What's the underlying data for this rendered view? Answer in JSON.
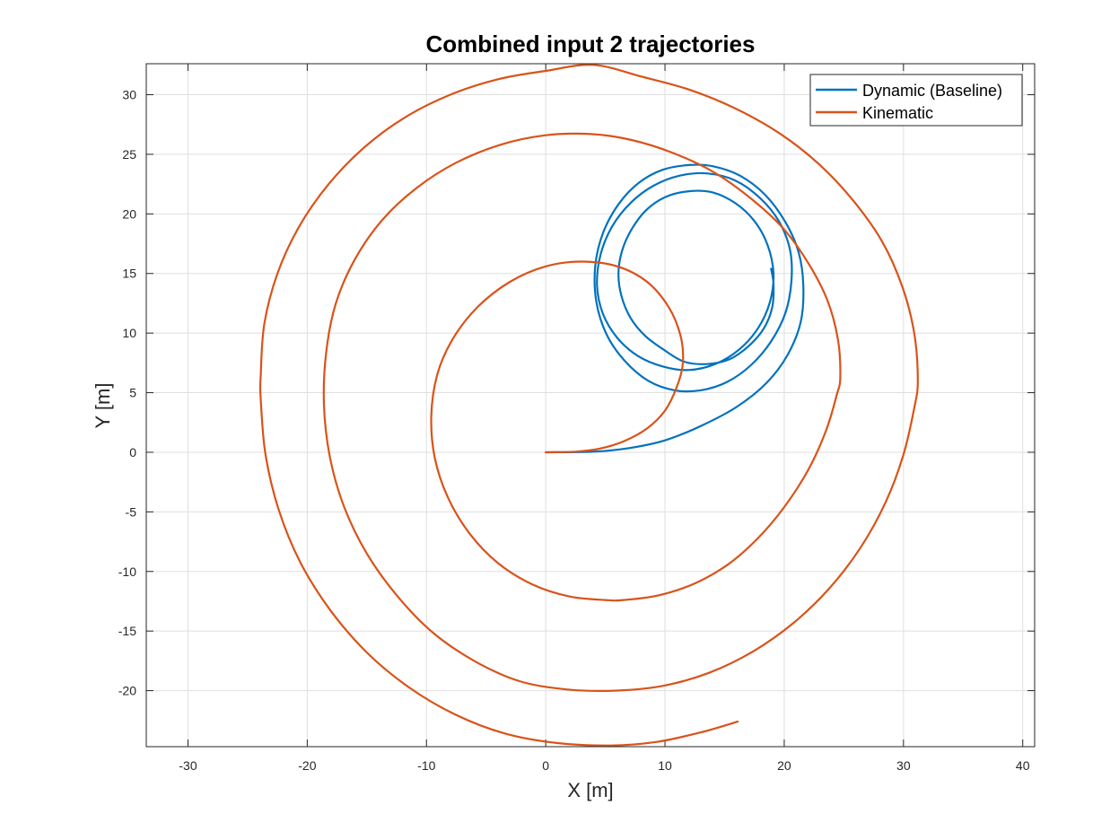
{
  "chart_data": {
    "type": "line",
    "title": "Combined input 2 trajectories",
    "xlabel": "X [m]",
    "ylabel": "Y [m]",
    "xlim": [
      -33.5,
      41
    ],
    "ylim": [
      -24.7,
      32.6
    ],
    "xticks": [
      -30,
      -20,
      -10,
      0,
      10,
      20,
      30,
      40
    ],
    "yticks": [
      -20,
      -15,
      -10,
      -5,
      0,
      5,
      10,
      15,
      20,
      25,
      30
    ],
    "grid": true,
    "legend_position": "top-right",
    "series": [
      {
        "name": "Dynamic (Baseline)",
        "color": "#0072BD",
        "points": [
          [
            0,
            0
          ],
          [
            4,
            0.05
          ],
          [
            7,
            0.35
          ],
          [
            10,
            1.0
          ],
          [
            13,
            2.2
          ],
          [
            16,
            3.8
          ],
          [
            18.5,
            5.8
          ],
          [
            20.3,
            8.2
          ],
          [
            21.4,
            11.0
          ],
          [
            21.6,
            14.0
          ],
          [
            21.2,
            16.8
          ],
          [
            20.1,
            19.3
          ],
          [
            18.4,
            21.6
          ],
          [
            16.3,
            23.2
          ],
          [
            14.0,
            24.0
          ],
          [
            12.0,
            24.1
          ],
          [
            9.8,
            23.7
          ],
          [
            7.8,
            22.6
          ],
          [
            6.1,
            20.8
          ],
          [
            4.8,
            18.4
          ],
          [
            4.15,
            15.6
          ],
          [
            4.25,
            12.6
          ],
          [
            5.1,
            9.9
          ],
          [
            6.6,
            7.7
          ],
          [
            8.6,
            6.0
          ],
          [
            10.8,
            5.2
          ],
          [
            13.0,
            5.2
          ],
          [
            15.2,
            5.9
          ],
          [
            17.2,
            7.3
          ],
          [
            18.9,
            9.3
          ],
          [
            20.1,
            11.7
          ],
          [
            20.6,
            14.3
          ],
          [
            20.5,
            16.9
          ],
          [
            19.6,
            19.3
          ],
          [
            18.0,
            21.3
          ],
          [
            15.9,
            22.8
          ],
          [
            13.5,
            23.4
          ],
          [
            11.2,
            23.2
          ],
          [
            9.1,
            22.4
          ],
          [
            7.2,
            21.0
          ],
          [
            5.6,
            19.0
          ],
          [
            4.6,
            16.6
          ],
          [
            4.3,
            14.0
          ],
          [
            4.8,
            11.6
          ],
          [
            6.0,
            9.6
          ],
          [
            7.7,
            8.1
          ],
          [
            9.8,
            7.2
          ],
          [
            12.0,
            6.9
          ],
          [
            14.2,
            7.4
          ],
          [
            16.2,
            8.6
          ],
          [
            17.8,
            10.4
          ],
          [
            18.8,
            12.6
          ],
          [
            19.1,
            15.0
          ],
          [
            18.6,
            17.4
          ],
          [
            17.5,
            19.4
          ],
          [
            15.9,
            20.9
          ],
          [
            14.0,
            21.8
          ],
          [
            12.0,
            21.9
          ],
          [
            10.0,
            21.4
          ],
          [
            8.4,
            20.3
          ],
          [
            7.2,
            18.7
          ],
          [
            6.4,
            16.9
          ],
          [
            6.1,
            15.0
          ],
          [
            6.35,
            13.1
          ],
          [
            7.1,
            11.3
          ],
          [
            8.3,
            9.8
          ],
          [
            9.9,
            8.6
          ],
          [
            11.6,
            7.6
          ],
          [
            13.5,
            7.4
          ],
          [
            15.4,
            7.8
          ],
          [
            17.0,
            8.9
          ],
          [
            18.3,
            10.4
          ],
          [
            19.0,
            12.2
          ],
          [
            19.1,
            14.1
          ],
          [
            18.9,
            15.4
          ]
        ]
      },
      {
        "name": "Kinematic",
        "color": "#D95319",
        "points": [
          [
            0,
            0
          ],
          [
            2.5,
            0.05
          ],
          [
            4.5,
            0.3
          ],
          [
            6.5,
            0.9
          ],
          [
            8.5,
            2.0
          ],
          [
            10.0,
            3.5
          ],
          [
            11.0,
            5.5
          ],
          [
            11.5,
            7.5
          ],
          [
            11.3,
            9.8
          ],
          [
            10.3,
            12.2
          ],
          [
            8.5,
            14.3
          ],
          [
            6.0,
            15.6
          ],
          [
            3.0,
            16.0
          ],
          [
            0.0,
            15.6
          ],
          [
            -3.0,
            14.3
          ],
          [
            -5.7,
            12.2
          ],
          [
            -7.8,
            9.5
          ],
          [
            -9.1,
            6.5
          ],
          [
            -9.6,
            3.0
          ],
          [
            -9.3,
            -0.5
          ],
          [
            -8.2,
            -3.8
          ],
          [
            -6.4,
            -6.8
          ],
          [
            -4.0,
            -9.3
          ],
          [
            -1.1,
            -11.1
          ],
          [
            2.0,
            -12.1
          ],
          [
            5.0,
            -12.4
          ],
          [
            6.5,
            -12.4
          ],
          [
            9.5,
            -12.0
          ],
          [
            12.5,
            -11.0
          ],
          [
            15.3,
            -9.4
          ],
          [
            17.8,
            -7.2
          ],
          [
            20.0,
            -4.6
          ],
          [
            22.0,
            -1.5
          ],
          [
            23.5,
            1.8
          ],
          [
            24.4,
            4.8
          ],
          [
            24.7,
            6.3
          ],
          [
            24.5,
            9.5
          ],
          [
            23.6,
            12.8
          ],
          [
            22.0,
            15.9
          ],
          [
            19.9,
            18.8
          ],
          [
            17.2,
            21.3
          ],
          [
            14.1,
            23.5
          ],
          [
            10.7,
            25.1
          ],
          [
            7.2,
            26.2
          ],
          [
            3.8,
            26.7
          ],
          [
            0.0,
            26.6
          ],
          [
            -3.8,
            25.8
          ],
          [
            -7.5,
            24.3
          ],
          [
            -10.8,
            22.2
          ],
          [
            -13.7,
            19.5
          ],
          [
            -16.0,
            16.2
          ],
          [
            -17.6,
            12.5
          ],
          [
            -18.4,
            8.5
          ],
          [
            -18.6,
            4.0
          ],
          [
            -18.1,
            -0.4
          ],
          [
            -16.9,
            -4.6
          ],
          [
            -15.0,
            -8.5
          ],
          [
            -12.5,
            -12.0
          ],
          [
            -9.5,
            -15.1
          ],
          [
            -6.0,
            -17.5
          ],
          [
            -2.2,
            -19.2
          ],
          [
            1.8,
            -19.9
          ],
          [
            5.8,
            -20.0
          ],
          [
            9.8,
            -19.6
          ],
          [
            13.7,
            -18.5
          ],
          [
            17.4,
            -16.7
          ],
          [
            20.8,
            -14.3
          ],
          [
            23.8,
            -11.4
          ],
          [
            26.4,
            -8.0
          ],
          [
            28.5,
            -4.2
          ],
          [
            30.0,
            -0.2
          ],
          [
            30.9,
            3.7
          ],
          [
            31.2,
            6.0
          ],
          [
            30.9,
            10.0
          ],
          [
            29.9,
            13.9
          ],
          [
            28.2,
            17.7
          ],
          [
            25.8,
            21.1
          ],
          [
            23.0,
            24.1
          ],
          [
            19.7,
            26.7
          ],
          [
            16.0,
            28.8
          ],
          [
            12.1,
            30.4
          ],
          [
            8.1,
            31.5
          ],
          [
            4.0,
            32.5
          ],
          [
            0.0,
            32.0
          ],
          [
            -4.0,
            31.3
          ],
          [
            -8.0,
            30.0
          ],
          [
            -11.8,
            28.1
          ],
          [
            -15.2,
            25.6
          ],
          [
            -18.2,
            22.5
          ],
          [
            -20.7,
            18.9
          ],
          [
            -22.5,
            15.0
          ],
          [
            -23.6,
            10.8
          ],
          [
            -23.9,
            6.5
          ],
          [
            -23.9,
            4.4
          ],
          [
            -23.5,
            -0.2
          ],
          [
            -22.4,
            -4.8
          ],
          [
            -20.6,
            -9.2
          ],
          [
            -18.1,
            -13.2
          ],
          [
            -15.0,
            -16.8
          ],
          [
            -11.5,
            -19.7
          ],
          [
            -7.6,
            -22.0
          ],
          [
            -3.4,
            -23.6
          ],
          [
            1.0,
            -24.4
          ],
          [
            5.5,
            -24.6
          ],
          [
            9.3,
            -24.3
          ],
          [
            13.0,
            -23.5
          ],
          [
            16.1,
            -22.6
          ]
        ]
      }
    ]
  }
}
